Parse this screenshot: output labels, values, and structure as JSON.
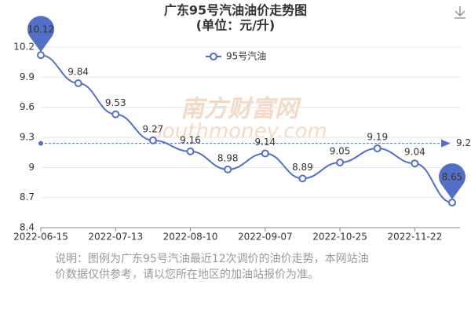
{
  "chart_data": {
    "type": "line",
    "title": "广东95号汽油油价走势图",
    "subtitle": "(单位：元/升)",
    "watermark": [
      "南方财富网",
      "southmoney.com"
    ],
    "categories": [
      "2022-06-15",
      null,
      "2022-07-13",
      null,
      "2022-08-10",
      null,
      "2022-09-07",
      null,
      "2022-10-25",
      null,
      "2022-11-22",
      null
    ],
    "series": [
      {
        "name": "95号汽油",
        "color": "#5470c6",
        "values": [
          10.12,
          9.84,
          9.53,
          9.27,
          9.16,
          8.98,
          9.14,
          8.89,
          9.05,
          9.19,
          9.04,
          8.65
        ]
      }
    ],
    "ylim": [
      8.4,
      10.2
    ],
    "yticks": [
      8.4,
      8.7,
      9,
      9.3,
      9.6,
      9.9,
      10.2
    ],
    "grid": true,
    "mark_line": {
      "value": 9.24,
      "label": "9.2"
    },
    "note": [
      "说明：图例为广东95号汽油最近12次调价的油价走势，本网站油",
      "价数据仅供参考，请以您所在地区的加油站报价为准。"
    ]
  }
}
